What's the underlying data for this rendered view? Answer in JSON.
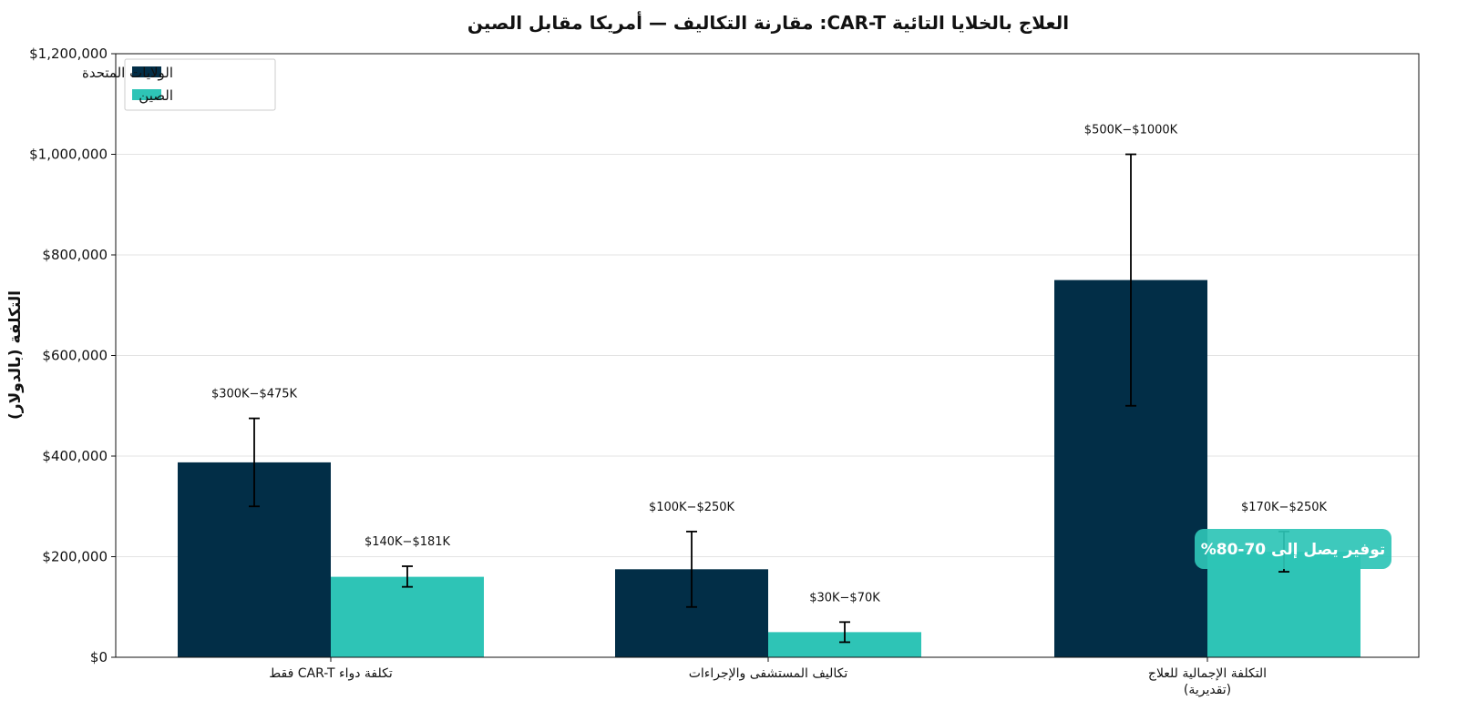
{
  "chart_data": {
    "type": "bar",
    "title": "العلاج بالخلايا التائية CAR-T: مقارنة التكاليف — أمريكا مقابل الصين",
    "ylabel": "التكلفة (بالدولار)",
    "xlabel": "",
    "ylim": [
      0,
      1200000
    ],
    "yticks": [
      0,
      200000,
      400000,
      600000,
      800000,
      1000000,
      1200000
    ],
    "ytick_labels": [
      "$0",
      "$200,000",
      "$400,000",
      "$600,000",
      "$800,000",
      "$1,000,000",
      "$1,200,000"
    ],
    "grid": "y",
    "legend_position": "top-left",
    "categories": [
      [
        "تكلفة دواء CAR-T فقط"
      ],
      [
        "تكاليف المستشفى والإجراءات"
      ],
      [
        "التكلفة الإجمالية للعلاج",
        "(تقديرية)"
      ]
    ],
    "series": [
      {
        "name": "الولايات المتحدة",
        "color": "#022e47",
        "values": [
          387500,
          175000,
          750000
        ],
        "err_low": [
          300000,
          100000,
          500000
        ],
        "err_high": [
          475000,
          250000,
          1000000
        ],
        "labels": [
          "$300K−$475K",
          "$100K−$250K",
          "$500K−$1000K"
        ]
      },
      {
        "name": "الصين",
        "color": "#2ec4b6",
        "values": [
          160000,
          50000,
          210000
        ],
        "err_low": [
          140000,
          30000,
          170000
        ],
        "err_high": [
          181000,
          70000,
          250000
        ],
        "labels": [
          "$140K−$181K",
          "$30K−$70K",
          "$170K−$250K"
        ]
      }
    ],
    "annotation": {
      "text": "توفير يصل إلى 70-80%",
      "color": "#2ec4b6",
      "category_index": 2,
      "value": 210000
    }
  }
}
